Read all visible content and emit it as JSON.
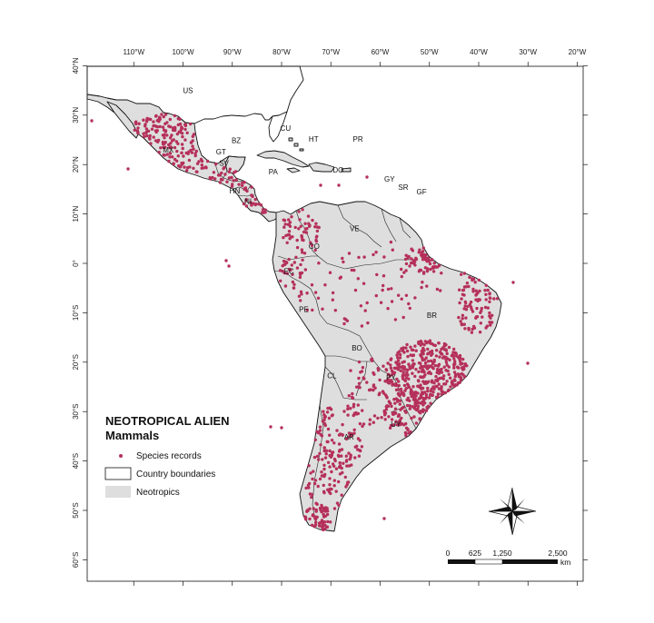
{
  "map": {
    "lon_ticks": [
      "110°W",
      "100°W",
      "90°W",
      "80°W",
      "70°W",
      "60°W",
      "50°W",
      "40°W",
      "30°W",
      "20°W"
    ],
    "lat_ticks": [
      "40°N",
      "30°N",
      "20°N",
      "10°N",
      "0°",
      "10°S",
      "20°S",
      "30°S",
      "40°S",
      "50°S",
      "60°S"
    ],
    "country_labels": [
      {
        "code": "US",
        "lon": -99,
        "lat": 35
      },
      {
        "code": "MX",
        "lon": -103,
        "lat": 23
      },
      {
        "code": "CU",
        "lon": -79.2,
        "lat": 27.4
      },
      {
        "code": "BZ",
        "lon": -89.2,
        "lat": 24.9
      },
      {
        "code": "GT",
        "lon": -92.3,
        "lat": 22.6
      },
      {
        "code": "SV",
        "lon": -91.7,
        "lat": 20.3
      },
      {
        "code": "HN",
        "lon": -89.5,
        "lat": 14.7
      },
      {
        "code": "NI",
        "lon": -86.8,
        "lat": 12.6
      },
      {
        "code": "PA",
        "lon": -81.7,
        "lat": 18.6
      },
      {
        "code": "HT",
        "lon": -73.5,
        "lat": 25.2
      },
      {
        "code": "PR",
        "lon": -64.5,
        "lat": 25.2
      },
      {
        "code": "DO",
        "lon": -68.5,
        "lat": 18.9
      },
      {
        "code": "GY",
        "lon": -58.1,
        "lat": 17.1
      },
      {
        "code": "SR",
        "lon": -55.3,
        "lat": 15.4
      },
      {
        "code": "GF",
        "lon": -51.6,
        "lat": 14.5
      },
      {
        "code": "VE",
        "lon": -65.2,
        "lat": 7.1
      },
      {
        "code": "CO",
        "lon": -73.4,
        "lat": 3.5
      },
      {
        "code": "EC",
        "lon": -78.5,
        "lat": -1.6
      },
      {
        "code": "PE",
        "lon": -75.5,
        "lat": -9.3
      },
      {
        "code": "BR",
        "lon": -49.5,
        "lat": -10.5
      },
      {
        "code": "BO",
        "lon": -64.7,
        "lat": -17.1
      },
      {
        "code": "PY",
        "lon": -57.8,
        "lat": -23.1
      },
      {
        "code": "CL",
        "lon": -69.8,
        "lat": -22.7
      },
      {
        "code": "AR",
        "lon": -66.3,
        "lat": -35.1
      },
      {
        "code": "UY",
        "lon": -56.8,
        "lat": -32.5
      }
    ],
    "points_color": "#b5305a",
    "neotropics_color": "#dedede"
  },
  "legend": {
    "title": "NEOTROPICAL ALIEN",
    "subtitle": "Mammals",
    "items": [
      {
        "label": "Species records"
      },
      {
        "label": "Country boundaries"
      },
      {
        "label": "Neotropics"
      }
    ]
  },
  "scale_bar": {
    "ticks": [
      "0",
      "625",
      "1,250",
      "2,500"
    ],
    "unit": "km"
  }
}
